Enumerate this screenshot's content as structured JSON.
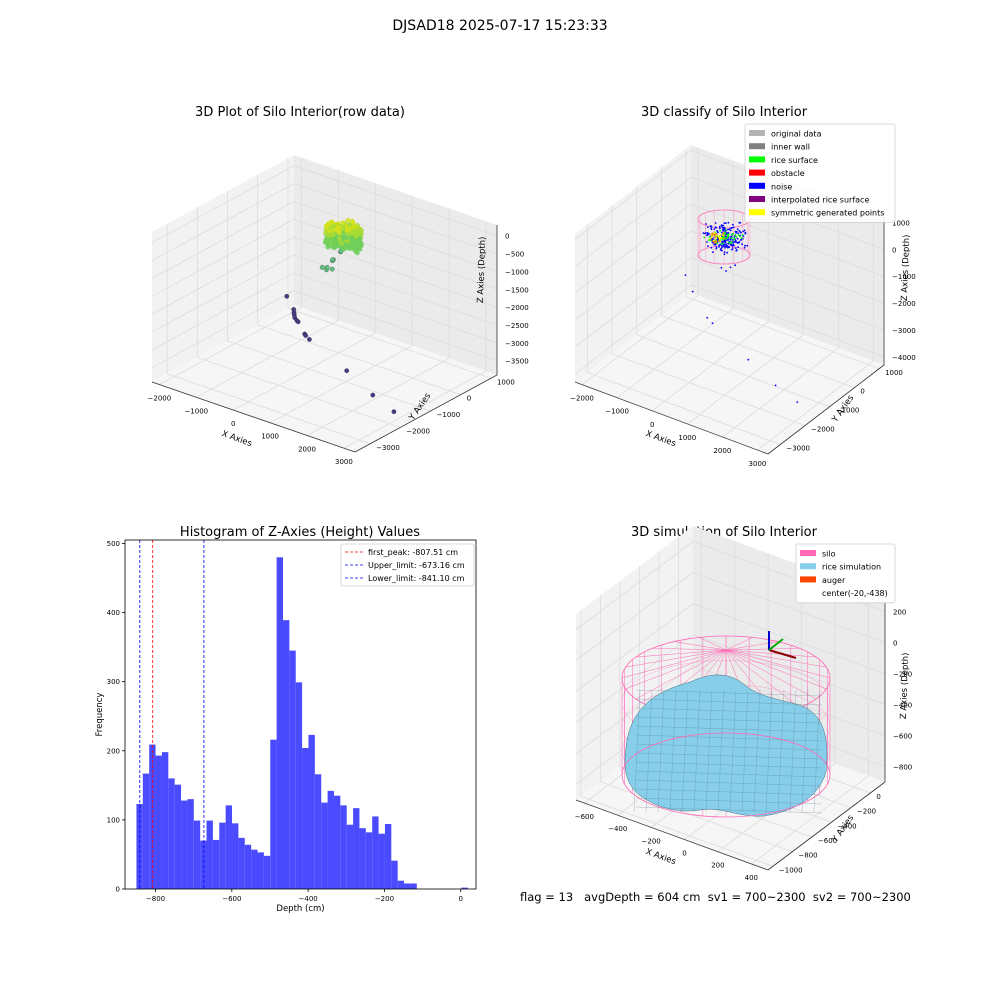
{
  "figure": {
    "suptitle": "DJSAD18 2025-07-17 15:23:33",
    "footer": "flag = 13   avgDepth = 604 cm  sv1 = 700~2300  sv2 = 700~2300"
  },
  "colors": {
    "pane": "#f2f2f2",
    "grid": "#dcdcdc",
    "hist_bar": "#4a4aff",
    "silo": "#ff69b4",
    "rice": "#87ceeb",
    "auger": "#ff4500",
    "raw_high": "#c8e12a",
    "raw_mid": "#5fc27f",
    "raw_low": "#443a83"
  },
  "chart_data": [
    {
      "type": "scatter",
      "title": "3D Plot of Silo Interior(row data)",
      "xlabel": "X Axies",
      "ylabel": "Y Axies",
      "zlabel": "Z Axies (Depth)",
      "x_ticks": [
        -2000,
        -1000,
        0,
        1000,
        2000,
        3000
      ],
      "y_ticks": [
        1000,
        0,
        -1000,
        -2000,
        -3000
      ],
      "z_ticks": [
        0,
        -500,
        -1000,
        -1500,
        -2000,
        -2500,
        -3000,
        -3500
      ],
      "xlim": [
        -2200,
        3300
      ],
      "ylim": [
        -3500,
        1200
      ],
      "zlim": [
        -3900,
        300
      ],
      "points": [
        {
          "x": -2150,
          "y": 900,
          "z": -3500
        },
        {
          "x": -1800,
          "y": 700,
          "z": -3650
        },
        {
          "x": -1750,
          "y": 650,
          "z": -3700
        },
        {
          "x": -1700,
          "y": 600,
          "z": -3720
        },
        {
          "x": -1650,
          "y": 550,
          "z": -3760
        },
        {
          "x": -1550,
          "y": 500,
          "z": -3780
        },
        {
          "x": -1500,
          "y": 480,
          "z": -3790
        },
        {
          "x": -1050,
          "y": 150,
          "z": -3820
        },
        {
          "x": -1000,
          "y": 120,
          "z": -3830
        },
        {
          "x": -850,
          "y": 60,
          "z": -3860
        },
        {
          "x": 700,
          "y": -600,
          "z": -3880
        },
        {
          "x": 1900,
          "y": -1200,
          "z": -3860
        },
        {
          "x": 2800,
          "y": -1600,
          "z": -3820
        },
        {
          "x": -700,
          "y": 300,
          "z": -1900
        },
        {
          "x": -500,
          "y": 200,
          "z": -1850
        },
        {
          "x": -400,
          "y": 100,
          "z": -1700
        },
        {
          "x": -300,
          "y": 150,
          "z": -1500
        },
        {
          "x": -150,
          "y": 0,
          "z": -1350
        },
        {
          "x": -100,
          "y": -100,
          "z": -1550
        },
        {
          "x": 0,
          "y": 50,
          "z": -1100
        },
        {
          "x": 100,
          "y": -50,
          "z": -1000
        },
        {
          "x": -50,
          "y": -150,
          "z": -1250
        }
      ],
      "dense_cluster": {
        "x_range": [
          -200,
          600
        ],
        "y_range": [
          -500,
          300
        ],
        "z_range": [
          -900,
          0
        ]
      }
    },
    {
      "type": "scatter",
      "title": "3D classify of Silo Interior",
      "xlabel": "X Axies",
      "ylabel": "Y Axies",
      "zlabel": "Z Axies (Depth)",
      "x_ticks": [
        -2000,
        -1000,
        0,
        1000,
        2000,
        3000
      ],
      "y_ticks": [
        1000,
        0,
        -1000,
        -2000,
        -3000
      ],
      "z_ticks": [
        1000,
        0,
        -1000,
        -2000,
        -3000,
        -4000
      ],
      "xlim": [
        -2200,
        3300
      ],
      "ylim": [
        -3500,
        1200
      ],
      "zlim": [
        -4300,
        1200
      ],
      "legend": [
        {
          "label": "original data",
          "color": "#b3b3b3"
        },
        {
          "label": "inner wall",
          "color": "#808080"
        },
        {
          "label": "rice surface",
          "color": "#00ff00"
        },
        {
          "label": "obstacle",
          "color": "#ff0000"
        },
        {
          "label": "noise",
          "color": "#0000ff"
        },
        {
          "label": "interpolated rice surface",
          "color": "#800080"
        },
        {
          "label": "symmetric generated points",
          "color": "#ffff00"
        }
      ],
      "legend_loc": "upper right",
      "noise_points": [
        {
          "x": -2150,
          "y": 900,
          "z": -3400
        },
        {
          "x": -1800,
          "y": 700,
          "z": -3700
        },
        {
          "x": -1000,
          "y": 150,
          "z": -3900
        },
        {
          "x": -800,
          "y": 80,
          "z": -3950
        },
        {
          "x": 700,
          "y": -600,
          "z": -4100
        },
        {
          "x": 1900,
          "y": -1200,
          "z": -4050
        },
        {
          "x": 2800,
          "y": -1600,
          "z": -3950
        },
        {
          "x": -700,
          "y": 300,
          "z": -2000
        },
        {
          "x": -500,
          "y": 200,
          "z": -1950
        },
        {
          "x": -300,
          "y": 100,
          "z": -1650
        },
        {
          "x": -100,
          "y": 0,
          "z": -1400
        }
      ]
    },
    {
      "type": "bar",
      "title": "Histogram of Z-Axies (Height) Values",
      "xlabel": "Depth (cm)",
      "ylabel": "Frequency",
      "xlim": [
        -880,
        40
      ],
      "ylim": [
        0,
        505
      ],
      "x_ticks": [
        -800,
        -600,
        -400,
        -200,
        0
      ],
      "y_ticks": [
        0,
        100,
        200,
        300,
        400,
        500
      ],
      "bin_width": 16.7,
      "bin_left_edges": [
        -850,
        -833.3,
        -816.6,
        -799.9,
        -783.2,
        -766.5,
        -749.8,
        -733.1,
        -716.4,
        -699.7,
        -683,
        -666.3,
        -649.6,
        -632.9,
        -616.2,
        -599.5,
        -582.8,
        -566.1,
        -549.4,
        -532.7,
        -516,
        -499.3,
        -482.6,
        -465.9,
        -449.2,
        -432.5,
        -415.8,
        -399.1,
        -382.4,
        -365.7,
        -349,
        -332.3,
        -315.6,
        -298.9,
        -282.2,
        -265.5,
        -248.8,
        -232.1,
        -215.4,
        -198.7,
        -182,
        -165.3,
        -148.6,
        -131.9,
        -115.2,
        -98.5,
        -81.8,
        -65.1,
        -48.4,
        -31.7,
        -15,
        1.7
      ],
      "values": [
        123,
        167,
        209,
        193,
        198,
        160,
        151,
        128,
        130,
        99,
        70,
        99,
        71,
        96,
        121,
        95,
        74,
        64,
        57,
        53,
        48,
        216,
        480,
        389,
        345,
        299,
        204,
        223,
        166,
        125,
        142,
        135,
        121,
        93,
        117,
        88,
        82,
        105,
        80,
        94,
        41,
        12,
        8,
        8,
        0,
        0,
        0,
        0,
        0,
        0,
        0,
        2
      ],
      "vlines": [
        {
          "label": "first_peak: -807.51 cm",
          "x": -807.51,
          "color": "#ff0000"
        },
        {
          "label": "Upper_limit: -673.16 cm",
          "x": -673.16,
          "color": "#0000ff"
        },
        {
          "label": "Lower_limit: -841.10 cm",
          "x": -841.1,
          "color": "#0000ff"
        }
      ],
      "legend_loc": "upper right"
    },
    {
      "type": "area",
      "title": "3D simulation of Silo Interior",
      "xlabel": "X Axies",
      "ylabel": "Y Axies",
      "zlabel": "Z Axies (Depth)",
      "x_ticks": [
        -600,
        -400,
        -200,
        0,
        200,
        400
      ],
      "y_ticks": [
        0,
        -200,
        -400,
        -600,
        -800,
        -1000
      ],
      "z_ticks": [
        200,
        0,
        -200,
        -400,
        -600,
        -800
      ],
      "xlim": [
        -650,
        500
      ],
      "ylim": [
        -1050,
        150
      ],
      "zlim": [
        -900,
        300
      ],
      "legend": [
        {
          "label": "silo",
          "color": "#ff69b4"
        },
        {
          "label": "rice simulation",
          "color": "#87ceeb"
        },
        {
          "label": "auger",
          "color": "#ff4500"
        },
        {
          "label": "center(-20,-438)",
          "color": ""
        }
      ],
      "legend_loc": "upper right"
    }
  ]
}
